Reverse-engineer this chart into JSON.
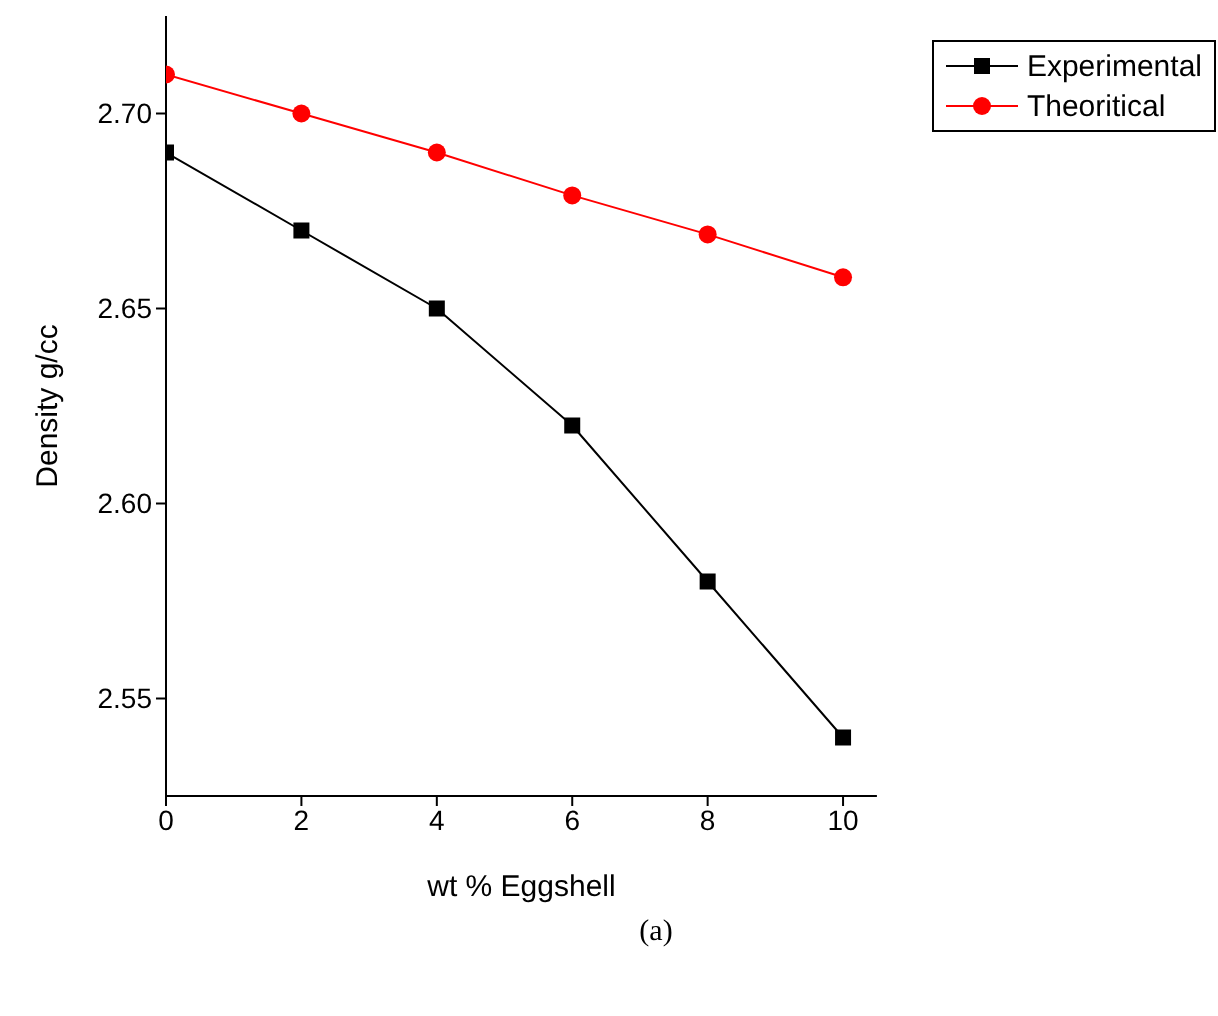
{
  "chart_data": {
    "type": "line",
    "xlabel": "wt % Eggshell",
    "ylabel": "Density g/cc",
    "x": [
      0,
      2,
      4,
      6,
      8,
      10
    ],
    "series": [
      {
        "name": "Experimental",
        "color": "#000000",
        "marker": "square",
        "values": [
          2.69,
          2.67,
          2.65,
          2.62,
          2.58,
          2.54
        ]
      },
      {
        "name": "Theoritical",
        "color": "#ff0000",
        "marker": "circle",
        "values": [
          2.71,
          2.7,
          2.69,
          2.679,
          2.669,
          2.658
        ]
      }
    ],
    "xlim": [
      0,
      10.5
    ],
    "xticks": [
      0,
      2,
      4,
      6,
      8,
      10
    ],
    "ylim": [
      2.525,
      2.725
    ],
    "yticks": [
      {
        "value": 2.55,
        "label": "2.55"
      },
      {
        "value": 2.6,
        "label": "2.60"
      },
      {
        "value": 2.65,
        "label": "2.65"
      },
      {
        "value": 2.7,
        "label": "2.70"
      }
    ],
    "grid": false,
    "legend": "top right",
    "annotations": [
      "(a)"
    ]
  }
}
